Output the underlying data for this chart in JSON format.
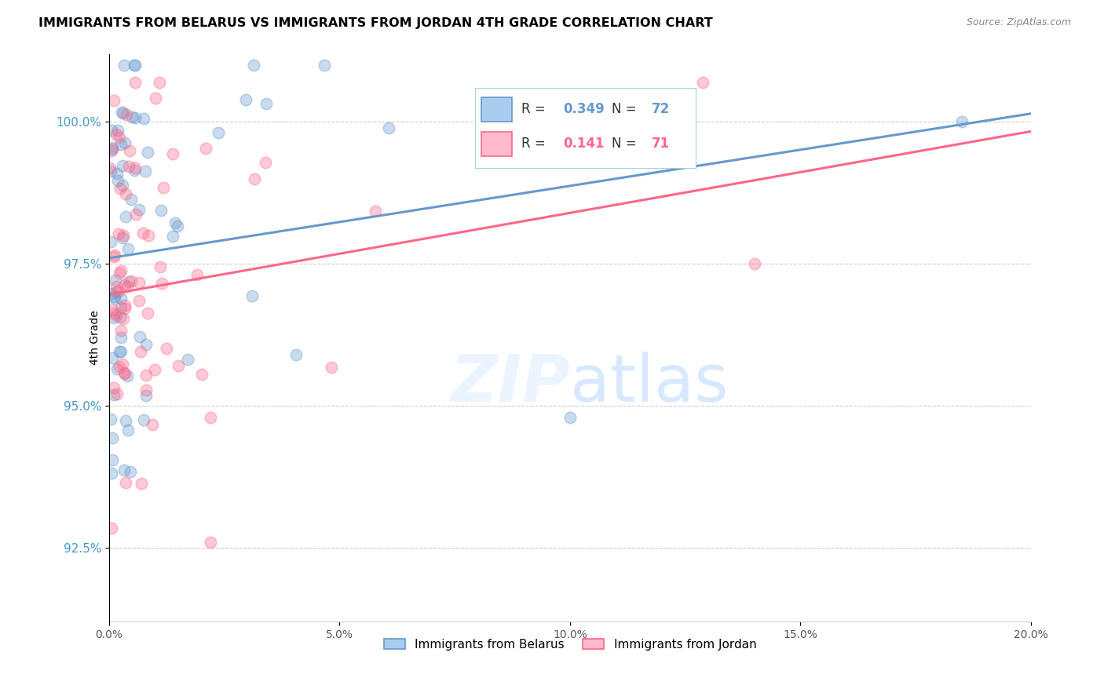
{
  "title": "IMMIGRANTS FROM BELARUS VS IMMIGRANTS FROM JORDAN 4TH GRADE CORRELATION CHART",
  "source": "Source: ZipAtlas.com",
  "ylabel": "4th Grade",
  "xlim": [
    0.0,
    0.2
  ],
  "ylim": [
    91.2,
    101.2
  ],
  "r_belarus": 0.349,
  "n_belarus": 72,
  "r_jordan": 0.141,
  "n_jordan": 71,
  "color_belarus": "#6699CC",
  "color_jordan": "#FF6688",
  "legend_label_belarus": "Immigrants from Belarus",
  "legend_label_jordan": "Immigrants from Jordan",
  "yticks": [
    92.5,
    95.0,
    97.5,
    100.0
  ],
  "ytick_labels": [
    "92.5%",
    "95.0%",
    "97.5%",
    "100.0%"
  ],
  "xtick_positions": [
    0.0,
    0.05,
    0.1,
    0.15,
    0.2
  ],
  "xtick_labels": [
    "0.0%",
    "5.0%",
    "10.0%",
    "15.0%",
    "20.0%"
  ]
}
